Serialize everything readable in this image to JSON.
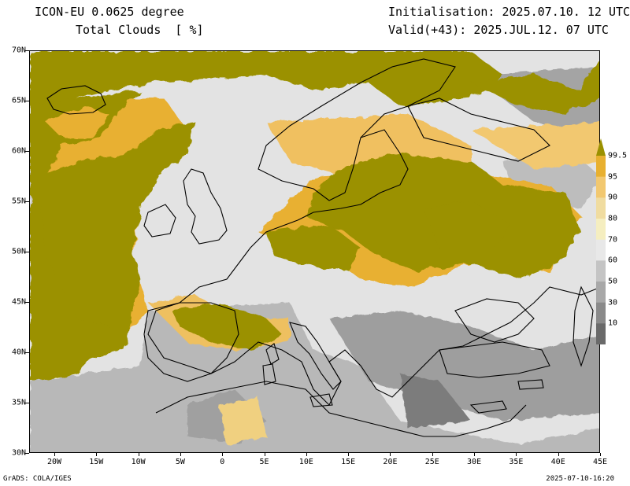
{
  "header": {
    "model": "ICON-EU 0.0625 degree",
    "variable": "Total Clouds  [ %]",
    "init": "Initialisation: 2025.07.10. 12 UTC",
    "valid": "Valid(+43): 2025.JUL.12. 07 UTC"
  },
  "map": {
    "lat_labels": [
      "70N",
      "65N",
      "60N",
      "55N",
      "50N",
      "45N",
      "40N",
      "35N",
      "30N"
    ],
    "lon_labels": [
      "20W",
      "15W",
      "10W",
      "5W",
      "0",
      "5E",
      "10E",
      "15E",
      "20E",
      "25E",
      "30E",
      "35E",
      "40E",
      "45E"
    ],
    "lon_min": -23,
    "lon_max": 45,
    "lat_min": 30,
    "lat_max": 70
  },
  "colorbar": {
    "levels": [
      "99.5",
      "95",
      "90",
      "80",
      "70",
      "60",
      "50",
      "30",
      "10"
    ],
    "colors": [
      "#9b9100",
      "#e8b030",
      "#f2c870",
      "#f0dca0",
      "#f5eec0",
      "#e8e8e8",
      "#c4c4c4",
      "#a8a8a8",
      "#8a8a8a",
      "#6a6a6a"
    ]
  },
  "footer": {
    "left": "GrADS: COLA/IGES",
    "right": "2025-07-10-16:20"
  }
}
